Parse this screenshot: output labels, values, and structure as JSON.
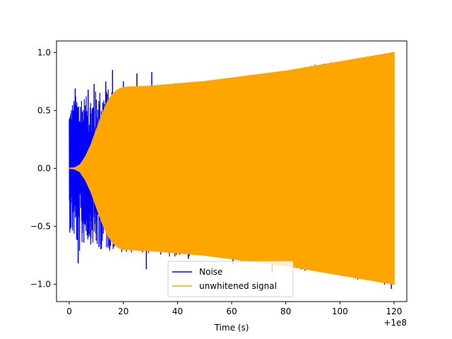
{
  "chart_data": {
    "type": "line",
    "title": "",
    "xlabel": "Time (s)",
    "ylabel": "",
    "x_offset_label": "+1e8",
    "xlim": [
      -4.7,
      124.7
    ],
    "ylim": [
      -1.15,
      1.1
    ],
    "xticks": [
      0,
      20,
      40,
      60,
      80,
      100,
      120
    ],
    "xtick_labels": [
      "0",
      "20",
      "40",
      "60",
      "80",
      "100",
      "120"
    ],
    "yticks": [
      -1.0,
      -0.5,
      0.0,
      0.5,
      1.0
    ],
    "ytick_labels": [
      "−1.0",
      "−0.5",
      "0.0",
      "0.5",
      "1.0"
    ],
    "grid": false,
    "legend_position": "lower-center",
    "series": [
      {
        "name": "Noise",
        "color": "#0000ff",
        "description": "oscillating noise",
        "envelope_upper": [
          [
            0,
            0.55
          ],
          [
            2,
            0.62
          ],
          [
            4,
            0.68
          ],
          [
            6,
            0.62
          ],
          [
            10,
            0.68
          ],
          [
            17,
            0.7
          ],
          [
            30,
            0.72
          ],
          [
            60,
            0.78
          ],
          [
            100,
            0.93
          ],
          [
            120,
            1.0
          ]
        ],
        "envelope_lower": [
          [
            0,
            -0.55
          ],
          [
            2,
            -0.62
          ],
          [
            4,
            -0.75
          ],
          [
            6,
            -0.62
          ],
          [
            10,
            -0.7
          ],
          [
            17,
            -0.72
          ],
          [
            30,
            -0.75
          ],
          [
            60,
            -0.8
          ],
          [
            100,
            -0.93
          ],
          [
            120,
            -1.03
          ]
        ],
        "spikes": [
          [
            2.2,
            0.69
          ],
          [
            3.3,
            -0.82
          ],
          [
            7.0,
            0.68
          ],
          [
            9.2,
            0.73
          ],
          [
            11.0,
            -0.68
          ],
          [
            13.5,
            0.75
          ],
          [
            16.0,
            0.85
          ],
          [
            20.0,
            0.75
          ],
          [
            25.0,
            0.82
          ],
          [
            28.5,
            -0.87
          ],
          [
            30.5,
            0.83
          ],
          [
            35.0,
            0.72
          ],
          [
            44.0,
            -0.78
          ],
          [
            60.5,
            -0.83
          ],
          [
            75.0,
            -0.9
          ],
          [
            101.5,
            0.93
          ],
          [
            119.0,
            -1.04
          ]
        ]
      },
      {
        "name": "unwhitened signal",
        "color": "#ffa500",
        "envelope": [
          [
            0,
            0.0
          ],
          [
            2,
            0.005
          ],
          [
            4,
            0.03
          ],
          [
            6,
            0.1
          ],
          [
            8,
            0.2
          ],
          [
            10,
            0.33
          ],
          [
            12,
            0.46
          ],
          [
            14,
            0.57
          ],
          [
            16,
            0.64
          ],
          [
            18,
            0.68
          ],
          [
            20,
            0.7
          ],
          [
            30,
            0.71
          ],
          [
            40,
            0.73
          ],
          [
            50,
            0.75
          ],
          [
            60,
            0.78
          ],
          [
            70,
            0.81
          ],
          [
            80,
            0.84
          ],
          [
            90,
            0.88
          ],
          [
            100,
            0.92
          ],
          [
            110,
            0.96
          ],
          [
            120,
            1.0
          ]
        ]
      }
    ]
  }
}
